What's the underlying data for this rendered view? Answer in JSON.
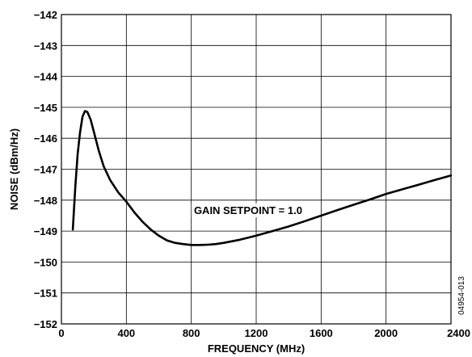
{
  "chart_data": {
    "type": "line",
    "title": "",
    "xlabel": "FREQUENCY (MHz)",
    "ylabel": "NOISE (dBm/Hz)",
    "xlim": [
      0,
      2400
    ],
    "ylim": [
      -152,
      -142
    ],
    "x_ticks": [
      0,
      400,
      800,
      1200,
      1600,
      2000,
      2400
    ],
    "y_ticks": [
      -142,
      -143,
      -144,
      -145,
      -146,
      -147,
      -148,
      -149,
      -150,
      -151,
      -152
    ],
    "x_tick_labels": [
      "0",
      "400",
      "800",
      "1200",
      "1600",
      "2000",
      "2400"
    ],
    "y_tick_labels": [
      "−142",
      "−143",
      "−144",
      "−145",
      "−146",
      "−147",
      "−148",
      "−149",
      "−150",
      "−151",
      "−152"
    ],
    "grid": true,
    "annotation": "GAIN SETPOINT = 1.0",
    "figure_id": "04954-013",
    "series": [
      {
        "x": [
          70,
          85,
          100,
          115,
          130,
          145,
          160,
          180,
          200,
          230,
          260,
          300,
          350,
          400,
          450,
          500,
          550,
          600,
          650,
          700,
          750,
          800,
          850,
          900,
          950,
          1000,
          1100,
          1200,
          1300,
          1400,
          1500,
          1600,
          1700,
          1800,
          1900,
          2000,
          2100,
          2200,
          2300,
          2400
        ],
        "y": [
          -148.95,
          -147.6,
          -146.5,
          -145.8,
          -145.3,
          -145.12,
          -145.15,
          -145.4,
          -145.8,
          -146.4,
          -146.9,
          -147.35,
          -147.75,
          -148.05,
          -148.4,
          -148.7,
          -148.95,
          -149.15,
          -149.3,
          -149.38,
          -149.42,
          -149.45,
          -149.45,
          -149.44,
          -149.42,
          -149.38,
          -149.28,
          -149.15,
          -149.0,
          -148.85,
          -148.68,
          -148.5,
          -148.32,
          -148.15,
          -147.98,
          -147.8,
          -147.65,
          -147.5,
          -147.35,
          -147.2
        ]
      }
    ],
    "colors": {
      "line": "#000000",
      "grid": "#000000",
      "background": "#ffffff"
    }
  }
}
